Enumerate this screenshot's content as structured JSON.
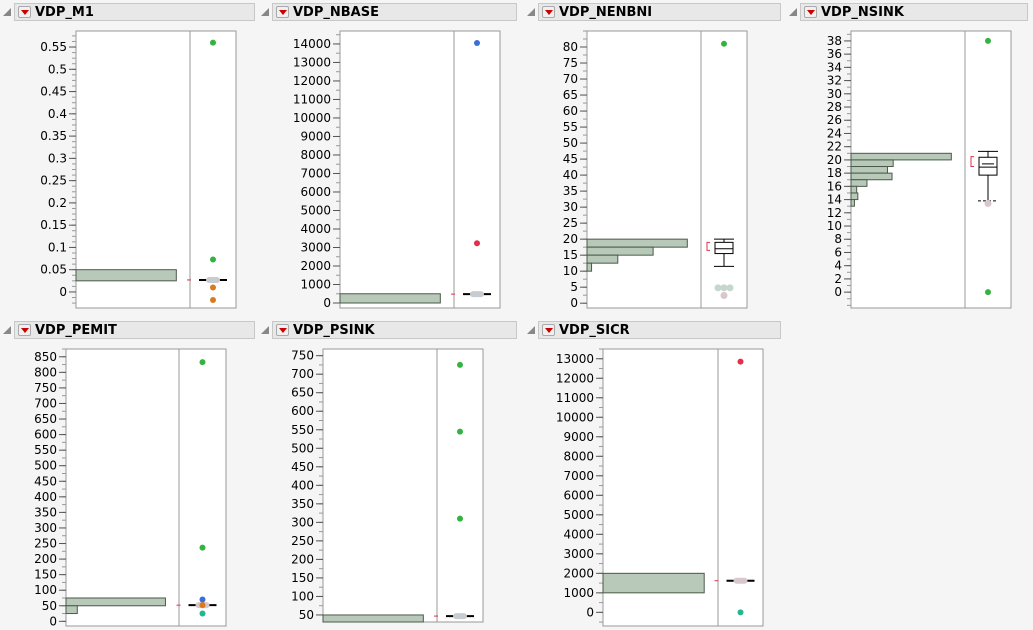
{
  "colors": {
    "bar_fill": "#b8c9b9",
    "bar_stroke": "#4a5a4a",
    "green": "#33b340",
    "red": "#e0304a",
    "blue": "#3a6fd8",
    "orange": "#d87a20",
    "teal": "#20b890",
    "grey": "#c8ccd0",
    "pink": "#d8c8cc"
  },
  "chart_data": [
    {
      "type": "histogram+outlier-box",
      "title": "VDP_M1",
      "ylim": [
        -0.036,
        0.586
      ],
      "ticks": [
        "0",
        "0.05",
        "0.1",
        "0.15",
        "0.2",
        "0.25",
        "0.3",
        "0.35",
        "0.4",
        "0.45",
        "0.5",
        "0.55"
      ],
      "tick_values": [
        0,
        0.05,
        0.1,
        0.15,
        0.2,
        0.25,
        0.3,
        0.35,
        0.4,
        0.45,
        0.5,
        0.55
      ],
      "minor": 0.0125,
      "bins": [
        {
          "lo": 0.025,
          "hi": 0.05,
          "rel": 0.88
        }
      ],
      "points": [
        {
          "v": 0.56,
          "c": "green"
        },
        {
          "v": 0.073,
          "c": "green"
        },
        {
          "v": 0.01,
          "c": "orange"
        },
        {
          "v": -0.018,
          "c": "orange"
        }
      ],
      "box": {
        "mid": 0.027,
        "cluster": "grey"
      }
    },
    {
      "type": "histogram+outlier-box",
      "title": "VDP_NBASE",
      "ylim": [
        -270,
        14700
      ],
      "ticks": [
        "0",
        "1000",
        "2000",
        "3000",
        "4000",
        "5000",
        "6000",
        "7000",
        "8000",
        "9000",
        "10000",
        "11000",
        "12000",
        "13000",
        "14000"
      ],
      "tick_values": [
        0,
        1000,
        2000,
        3000,
        4000,
        5000,
        6000,
        7000,
        8000,
        9000,
        10000,
        11000,
        12000,
        13000,
        14000
      ],
      "minor": 500,
      "bins": [
        {
          "lo": 0,
          "hi": 500,
          "rel": 0.88
        }
      ],
      "points": [
        {
          "v": 14050,
          "c": "blue"
        },
        {
          "v": 3230,
          "c": "red"
        }
      ],
      "box": {
        "mid": 480,
        "cluster": "grey"
      }
    },
    {
      "type": "histogram+outlier-box",
      "title": "VDP_NENBNI",
      "ylim": [
        -1.5,
        85
      ],
      "ticks": [
        "0",
        "5",
        "10",
        "15",
        "20",
        "25",
        "30",
        "35",
        "40",
        "45",
        "50",
        "55",
        "60",
        "65",
        "70",
        "75",
        "80"
      ],
      "tick_values": [
        0,
        5,
        10,
        15,
        20,
        25,
        30,
        35,
        40,
        45,
        50,
        55,
        60,
        65,
        70,
        75,
        80
      ],
      "minor": 2.5,
      "bins": [
        {
          "lo": 17.5,
          "hi": 20,
          "rel": 0.88
        },
        {
          "lo": 15,
          "hi": 17.5,
          "rel": 0.58
        },
        {
          "lo": 12.5,
          "hi": 15,
          "rel": 0.27
        },
        {
          "lo": 10,
          "hi": 12.5,
          "rel": 0.04
        }
      ],
      "points": [
        {
          "v": 81,
          "c": "green"
        },
        {
          "v": 4.8,
          "c": "grey"
        },
        {
          "v": 2.4,
          "c": "pink"
        }
      ],
      "box": {
        "lw": 11.5,
        "q1": 15.5,
        "med": 17,
        "q3": 19,
        "uw": 20,
        "ci": [
          16.5,
          19
        ]
      }
    },
    {
      "type": "histogram+outlier-box",
      "title": "VDP_NSINK",
      "ylim": [
        -2.4,
        39.5
      ],
      "ticks": [
        "0",
        "2",
        "4",
        "6",
        "8",
        "10",
        "12",
        "14",
        "16",
        "18",
        "20",
        "22",
        "24",
        "26",
        "28",
        "30",
        "32",
        "34",
        "36",
        "38"
      ],
      "tick_values": [
        0,
        2,
        4,
        6,
        8,
        10,
        12,
        14,
        16,
        18,
        20,
        22,
        24,
        26,
        28,
        30,
        32,
        34,
        36,
        38
      ],
      "minor": 1,
      "bins": [
        {
          "lo": 20,
          "hi": 21,
          "rel": 0.88
        },
        {
          "lo": 19,
          "hi": 20,
          "rel": 0.37
        },
        {
          "lo": 18,
          "hi": 19,
          "rel": 0.32
        },
        {
          "lo": 17,
          "hi": 18,
          "rel": 0.36
        },
        {
          "lo": 16,
          "hi": 17,
          "rel": 0.14
        },
        {
          "lo": 15,
          "hi": 16,
          "rel": 0.05
        },
        {
          "lo": 14,
          "hi": 15,
          "rel": 0.06
        },
        {
          "lo": 13,
          "hi": 14,
          "rel": 0.03
        }
      ],
      "points": [
        {
          "v": 38,
          "c": "green"
        },
        {
          "v": 0,
          "c": "green"
        },
        {
          "v": 13.4,
          "c": "pink"
        }
      ],
      "box": {
        "lw": 13.8,
        "q1": 17.7,
        "med": 18.9,
        "q3": 20.4,
        "uw": 21.3,
        "mean": 19.4,
        "ci": [
          19,
          20.5
        ]
      }
    },
    {
      "type": "histogram+outlier-box",
      "title": "VDP_PEMIT",
      "ylim": [
        -15,
        875
      ],
      "ticks": [
        "0",
        "50",
        "100",
        "150",
        "200",
        "250",
        "300",
        "350",
        "400",
        "450",
        "500",
        "550",
        "600",
        "650",
        "700",
        "750",
        "800",
        "850"
      ],
      "tick_values": [
        0,
        50,
        100,
        150,
        200,
        250,
        300,
        350,
        400,
        450,
        500,
        550,
        600,
        650,
        700,
        750,
        800,
        850
      ],
      "minor": 25,
      "bins": [
        {
          "lo": 50,
          "hi": 75,
          "rel": 0.88
        },
        {
          "lo": 25,
          "hi": 50,
          "rel": 0.1
        }
      ],
      "points": [
        {
          "v": 833,
          "c": "green"
        },
        {
          "v": 237,
          "c": "green"
        },
        {
          "v": 70,
          "c": "blue"
        },
        {
          "v": 52,
          "c": "orange"
        },
        {
          "v": 25,
          "c": "teal"
        }
      ],
      "box": {
        "mid": 52,
        "cluster": "pink"
      }
    },
    {
      "type": "histogram+outlier-box",
      "title": "VDP_PSINK",
      "ylim": [
        31,
        768
      ],
      "ticks": [
        "50",
        "100",
        "150",
        "200",
        "250",
        "300",
        "350",
        "400",
        "450",
        "500",
        "550",
        "600",
        "650",
        "700",
        "750"
      ],
      "tick_values": [
        50,
        100,
        150,
        200,
        250,
        300,
        350,
        400,
        450,
        500,
        550,
        600,
        650,
        700,
        750
      ],
      "minor": 25,
      "bins": [
        {
          "lo": 31,
          "hi": 50,
          "rel": 0.88
        }
      ],
      "points": [
        {
          "v": 725,
          "c": "green"
        },
        {
          "v": 545,
          "c": "green"
        },
        {
          "v": 310,
          "c": "green"
        }
      ],
      "box": {
        "mid": 47,
        "cluster": "grey"
      }
    },
    {
      "type": "histogram+outlier-box",
      "title": "VDP_SICR",
      "ylim": [
        -700,
        13500
      ],
      "ticks": [
        "0",
        "1000",
        "2000",
        "3000",
        "4000",
        "5000",
        "6000",
        "7000",
        "8000",
        "9000",
        "10000",
        "11000",
        "12000",
        "13000"
      ],
      "tick_values": [
        0,
        1000,
        2000,
        3000,
        4000,
        5000,
        6000,
        7000,
        8000,
        9000,
        10000,
        11000,
        12000,
        13000
      ],
      "minor": 500,
      "bins": [
        {
          "lo": 1000,
          "hi": 2000,
          "rel": 0.88
        }
      ],
      "points": [
        {
          "v": 12850,
          "c": "red"
        },
        {
          "v": 0,
          "c": "teal"
        }
      ],
      "box": {
        "mid": 1620,
        "cluster": "pink"
      }
    }
  ]
}
